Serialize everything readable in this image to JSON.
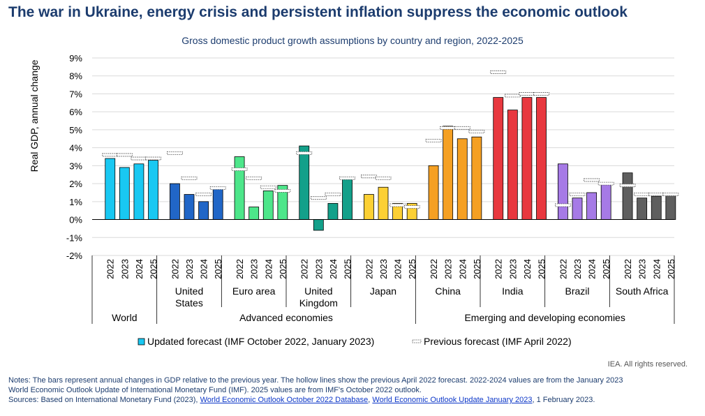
{
  "title": "The war in Ukraine, energy crisis and persistent inflation suppress the economic outlook",
  "subtitle": "Gross domestic product growth assumptions by country and region, 2022-2025",
  "rights": "IEA. All rights reserved.",
  "notes": {
    "line1": "Notes: The bars represent annual changes in GDP relative to the previous year. The hollow lines show the previous April 2022 forecast. 2022-2024 values are from the January 2023",
    "line2": "World Economic Outlook Update of International Monetary Fund (IMF). 2025 values are from IMF's October 2022 outlook.",
    "sources_prefix": "Sources: Based on International Monetary Fund (2023), ",
    "link1": "World Economic Outlook October 2022 Database",
    "sep": ", ",
    "link2": "World Economic Outlook Update January 2023",
    "sources_suffix": ", 1 February 2023."
  },
  "chart_data": {
    "type": "bar",
    "ylabel": "Real GDP, annual change",
    "ylim": [
      -2,
      9
    ],
    "yticks": [
      "-2%",
      "-1%",
      "0%",
      "1%",
      "2%",
      "3%",
      "4%",
      "5%",
      "6%",
      "7%",
      "8%",
      "9%"
    ],
    "grid": true,
    "years": [
      "2022",
      "2023",
      "2024",
      "2025"
    ],
    "groups": [
      {
        "name": "World",
        "label_lines": [
          ""
        ],
        "color": "#19c8f2",
        "updated": [
          3.4,
          2.9,
          3.1,
          3.3
        ],
        "previous": [
          3.6,
          3.6,
          3.4,
          3.4
        ]
      },
      {
        "name": "United States",
        "label_lines": [
          "United",
          "States"
        ],
        "color": "#2166c7",
        "updated": [
          2.0,
          1.4,
          1.0,
          1.75
        ],
        "previous": [
          3.7,
          2.3,
          1.4,
          1.75
        ]
      },
      {
        "name": "Euro area",
        "label_lines": [
          "Euro area"
        ],
        "color": "#4de68a",
        "updated": [
          3.5,
          0.7,
          1.6,
          1.9
        ],
        "previous": [
          2.8,
          2.3,
          1.8,
          1.6
        ]
      },
      {
        "name": "United Kingdom",
        "label_lines": [
          "United",
          "Kingdom"
        ],
        "color": "#13a08a",
        "updated": [
          4.1,
          -0.6,
          0.9,
          2.3
        ],
        "previous": [
          3.7,
          1.2,
          1.4,
          2.3
        ]
      },
      {
        "name": "Japan",
        "label_lines": [
          "Japan"
        ],
        "color": "#fcd034",
        "updated": [
          1.4,
          1.8,
          0.9,
          0.9
        ],
        "previous": [
          2.4,
          2.3,
          0.8,
          0.7
        ]
      },
      {
        "name": "China",
        "label_lines": [
          "China"
        ],
        "color": "#f5a023",
        "updated": [
          3.0,
          5.2,
          4.5,
          4.6
        ],
        "previous": [
          4.4,
          5.1,
          5.1,
          4.9
        ]
      },
      {
        "name": "India",
        "label_lines": [
          "India"
        ],
        "color": "#e8383f",
        "updated": [
          6.8,
          6.1,
          6.8,
          6.8
        ],
        "previous": [
          8.2,
          6.9,
          7.0,
          7.0
        ]
      },
      {
        "name": "Brazil",
        "label_lines": [
          "Brazil"
        ],
        "color": "#a67ae6",
        "updated": [
          3.1,
          1.2,
          1.5,
          2.0
        ],
        "previous": [
          0.8,
          1.4,
          2.2,
          2.0
        ]
      },
      {
        "name": "South Africa",
        "label_lines": [
          "South Africa"
        ],
        "color": "#5f5f5f",
        "updated": [
          2.6,
          1.2,
          1.3,
          1.4
        ],
        "previous": [
          1.9,
          1.4,
          1.4,
          1.4
        ]
      }
    ],
    "categories_level3": [
      {
        "name": "World",
        "span": [
          0,
          0
        ]
      },
      {
        "name": "Advanced economies",
        "span": [
          1,
          4
        ]
      },
      {
        "name": "Emerging and developing economies",
        "span": [
          5,
          8
        ]
      }
    ],
    "legend": {
      "placement": "bottom",
      "updated": "Updated forecast (IMF October 2022, January 2023)",
      "previous": "Previous forecast (IMF April 2022)"
    }
  }
}
